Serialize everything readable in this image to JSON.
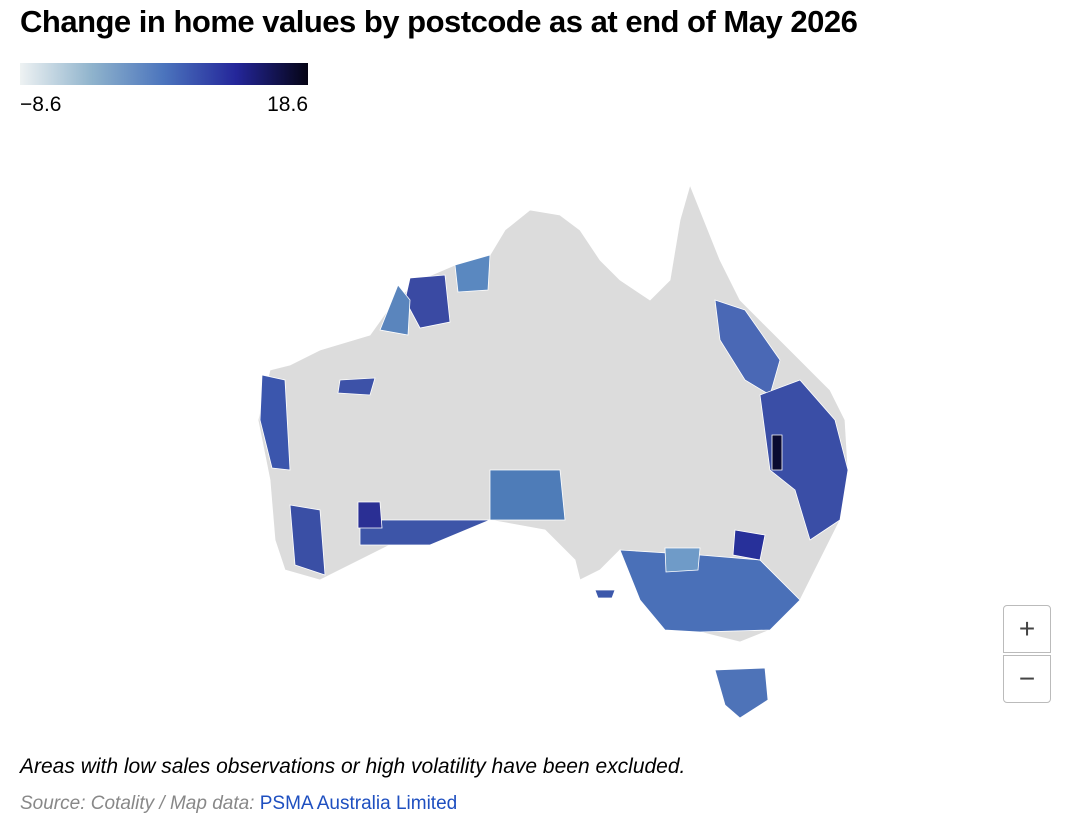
{
  "title": "Change in home values by postcode as at end of May 2026",
  "legend": {
    "min": {
      "value": -8.6,
      "label": "−8.6"
    },
    "max": 18.6,
    "colors": [
      "#eef2f3",
      "#8fb3cc",
      "#4b74bd",
      "#24269a",
      "#050414"
    ]
  },
  "note": "Areas with low sales observations or high volatility have been excluded.",
  "source": {
    "text": "Source: Cotality / Map data:",
    "link": "PSMA Australia Limited"
  },
  "zoom": {
    "in": "+",
    "out": "−"
  }
}
